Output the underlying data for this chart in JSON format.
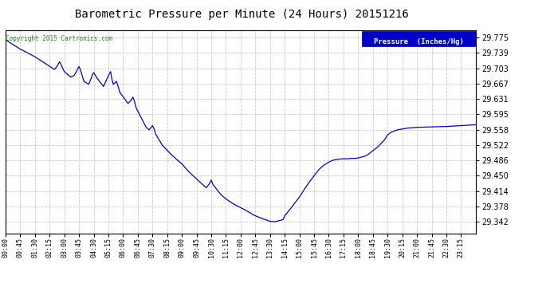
{
  "title": "Barometric Pressure per Minute (24 Hours) 20151216",
  "copyright_text": "Copyright 2015 Cartronics.com",
  "legend_text": "Pressure  (Inches/Hg)",
  "background_color": "#ffffff",
  "plot_bg_color": "#ffffff",
  "line_color": "#0000cc",
  "legend_bg_color": "#0000cc",
  "legend_text_color": "#ffffff",
  "grid_color": "#aaaaaa",
  "title_color": "#000000",
  "yticks": [
    29.342,
    29.378,
    29.414,
    29.45,
    29.486,
    29.522,
    29.558,
    29.595,
    29.631,
    29.667,
    29.703,
    29.739,
    29.775
  ],
  "ylim": [
    29.315,
    29.793
  ],
  "xtick_labels": [
    "00:00",
    "00:45",
    "01:30",
    "02:15",
    "03:00",
    "03:45",
    "04:30",
    "05:15",
    "06:00",
    "06:45",
    "07:30",
    "08:15",
    "09:00",
    "09:45",
    "10:30",
    "11:15",
    "12:00",
    "12:45",
    "13:30",
    "14:15",
    "15:00",
    "15:45",
    "16:30",
    "17:15",
    "18:00",
    "18:45",
    "19:30",
    "20:15",
    "21:00",
    "21:45",
    "22:30",
    "23:15"
  ],
  "data_points": [
    [
      0,
      29.77
    ],
    [
      20,
      29.76
    ],
    [
      45,
      29.748
    ],
    [
      70,
      29.738
    ],
    [
      90,
      29.73
    ],
    [
      120,
      29.715
    ],
    [
      150,
      29.7
    ],
    [
      160,
      29.71
    ],
    [
      165,
      29.718
    ],
    [
      170,
      29.712
    ],
    [
      175,
      29.703
    ],
    [
      180,
      29.695
    ],
    [
      200,
      29.682
    ],
    [
      210,
      29.686
    ],
    [
      215,
      29.692
    ],
    [
      220,
      29.7
    ],
    [
      225,
      29.707
    ],
    [
      230,
      29.698
    ],
    [
      235,
      29.685
    ],
    [
      240,
      29.672
    ],
    [
      255,
      29.665
    ],
    [
      260,
      29.675
    ],
    [
      265,
      29.685
    ],
    [
      270,
      29.693
    ],
    [
      280,
      29.68
    ],
    [
      290,
      29.67
    ],
    [
      300,
      29.66
    ],
    [
      315,
      29.685
    ],
    [
      318,
      29.69
    ],
    [
      322,
      29.695
    ],
    [
      325,
      29.68
    ],
    [
      330,
      29.665
    ],
    [
      340,
      29.672
    ],
    [
      345,
      29.66
    ],
    [
      350,
      29.646
    ],
    [
      360,
      29.636
    ],
    [
      375,
      29.62
    ],
    [
      385,
      29.628
    ],
    [
      390,
      29.635
    ],
    [
      395,
      29.625
    ],
    [
      400,
      29.61
    ],
    [
      410,
      29.595
    ],
    [
      420,
      29.58
    ],
    [
      430,
      29.565
    ],
    [
      440,
      29.558
    ],
    [
      450,
      29.568
    ],
    [
      455,
      29.56
    ],
    [
      460,
      29.548
    ],
    [
      470,
      29.535
    ],
    [
      480,
      29.522
    ],
    [
      495,
      29.51
    ],
    [
      510,
      29.498
    ],
    [
      525,
      29.488
    ],
    [
      540,
      29.478
    ],
    [
      555,
      29.465
    ],
    [
      570,
      29.453
    ],
    [
      585,
      29.443
    ],
    [
      600,
      29.432
    ],
    [
      615,
      29.422
    ],
    [
      625,
      29.432
    ],
    [
      630,
      29.44
    ],
    [
      635,
      29.43
    ],
    [
      645,
      29.42
    ],
    [
      655,
      29.41
    ],
    [
      665,
      29.402
    ],
    [
      680,
      29.393
    ],
    [
      700,
      29.383
    ],
    [
      720,
      29.375
    ],
    [
      740,
      29.367
    ],
    [
      755,
      29.36
    ],
    [
      765,
      29.356
    ],
    [
      775,
      29.353
    ],
    [
      785,
      29.35
    ],
    [
      795,
      29.347
    ],
    [
      810,
      29.343
    ],
    [
      825,
      29.342
    ],
    [
      835,
      29.344
    ],
    [
      850,
      29.347
    ],
    [
      855,
      29.356
    ],
    [
      870,
      29.37
    ],
    [
      885,
      29.385
    ],
    [
      900,
      29.4
    ],
    [
      915,
      29.418
    ],
    [
      930,
      29.435
    ],
    [
      945,
      29.45
    ],
    [
      960,
      29.465
    ],
    [
      975,
      29.475
    ],
    [
      990,
      29.482
    ],
    [
      1000,
      29.486
    ],
    [
      1010,
      29.488
    ],
    [
      1020,
      29.489
    ],
    [
      1030,
      29.49
    ],
    [
      1040,
      29.49
    ],
    [
      1050,
      29.49
    ],
    [
      1060,
      29.491
    ],
    [
      1070,
      29.491
    ],
    [
      1080,
      29.492
    ],
    [
      1100,
      29.496
    ],
    [
      1110,
      29.5
    ],
    [
      1120,
      29.506
    ],
    [
      1130,
      29.512
    ],
    [
      1140,
      29.518
    ],
    [
      1150,
      29.526
    ],
    [
      1160,
      29.534
    ],
    [
      1165,
      29.54
    ],
    [
      1170,
      29.546
    ],
    [
      1180,
      29.552
    ],
    [
      1190,
      29.555
    ],
    [
      1200,
      29.558
    ],
    [
      1215,
      29.56
    ],
    [
      1230,
      29.562
    ],
    [
      1260,
      29.564
    ],
    [
      1350,
      29.566
    ],
    [
      1395,
      29.568
    ],
    [
      1440,
      29.57
    ]
  ]
}
